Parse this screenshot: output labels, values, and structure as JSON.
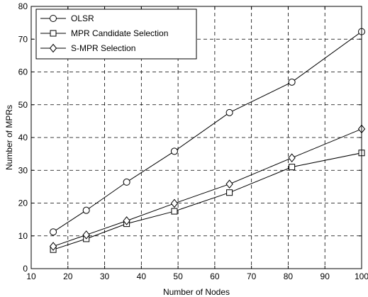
{
  "chart_data": {
    "type": "line",
    "title": "",
    "xlabel": "Number of Nodes",
    "ylabel": "Number of MPRs",
    "xlim": [
      10,
      100
    ],
    "ylim": [
      0,
      80
    ],
    "xticks": [
      "10",
      "20",
      "30",
      "40",
      "50",
      "60",
      "70",
      "80",
      "90",
      "100"
    ],
    "yticks": [
      "0",
      "10",
      "20",
      "30",
      "40",
      "50",
      "60",
      "70",
      "80"
    ],
    "grid": true,
    "grid_style": "dashed",
    "legend_position": "top-left",
    "x": [
      16,
      25,
      36,
      49,
      64,
      81,
      100
    ],
    "series": [
      {
        "name": "OLSR",
        "marker": "circle",
        "values": [
          11.2,
          17.8,
          26.4,
          35.8,
          47.6,
          56.9,
          72.3
        ]
      },
      {
        "name": "MPR Candidate Selection",
        "marker": "square",
        "values": [
          5.8,
          9.1,
          13.7,
          17.5,
          23.2,
          31.0,
          35.3
        ]
      },
      {
        "name": "S-MPR Selection",
        "marker": "diamond",
        "values": [
          6.8,
          10.3,
          14.6,
          19.9,
          25.8,
          33.8,
          42.6
        ]
      }
    ],
    "colors": {
      "line": "#000000",
      "grid": "#000000",
      "background": "#ffffff"
    }
  }
}
